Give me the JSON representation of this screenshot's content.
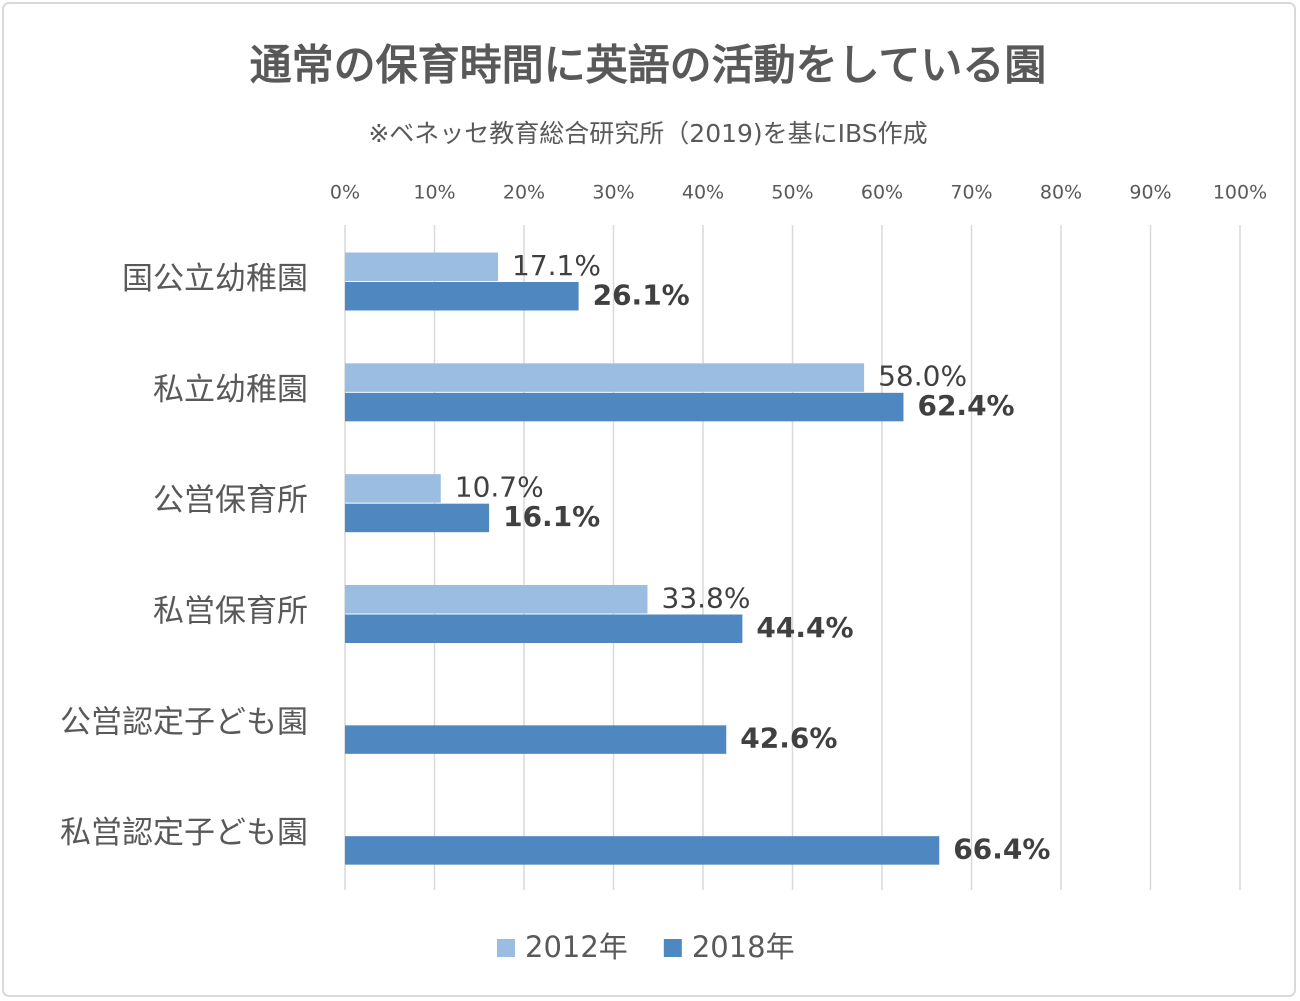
{
  "chart_data": {
    "type": "bar",
    "orientation": "horizontal",
    "title": "通常の保育時間に英語の活動をしている園",
    "subtitle": "※ベネッセ教育総合研究所（2019)を基にIBS作成",
    "categories": [
      "国公立幼稚園",
      "私立幼稚園",
      "公営保育所",
      "私営保育所",
      "公営認定子ども園",
      "私営認定子ども園"
    ],
    "series": [
      {
        "name": "2012年",
        "color": "#9cbde2",
        "values": [
          17.1,
          58.0,
          10.7,
          33.8,
          null,
          null
        ],
        "value_labels": [
          "17.1%",
          "58.0%",
          "10.7%",
          "33.8%",
          null,
          null
        ]
      },
      {
        "name": "2018年",
        "color": "#4f88c0",
        "values": [
          26.1,
          62.4,
          16.1,
          44.4,
          42.6,
          66.4
        ],
        "value_labels": [
          "26.1%",
          "62.4%",
          "16.1%",
          "44.4%",
          "42.6%",
          "66.4%"
        ]
      }
    ],
    "xlim": [
      0,
      100
    ],
    "xticks": [
      {
        "value": 0,
        "label": "0%"
      },
      {
        "value": 10,
        "label": "10%"
      },
      {
        "value": 20,
        "label": "20%"
      },
      {
        "value": 30,
        "label": "30%"
      },
      {
        "value": 40,
        "label": "40%"
      },
      {
        "value": 50,
        "label": "50%"
      },
      {
        "value": 60,
        "label": "60%"
      },
      {
        "value": 70,
        "label": "70%"
      },
      {
        "value": 80,
        "label": "80%"
      },
      {
        "value": 90,
        "label": "90%"
      },
      {
        "value": 100,
        "label": "100%"
      }
    ],
    "grid": true,
    "legend": "bottom"
  }
}
